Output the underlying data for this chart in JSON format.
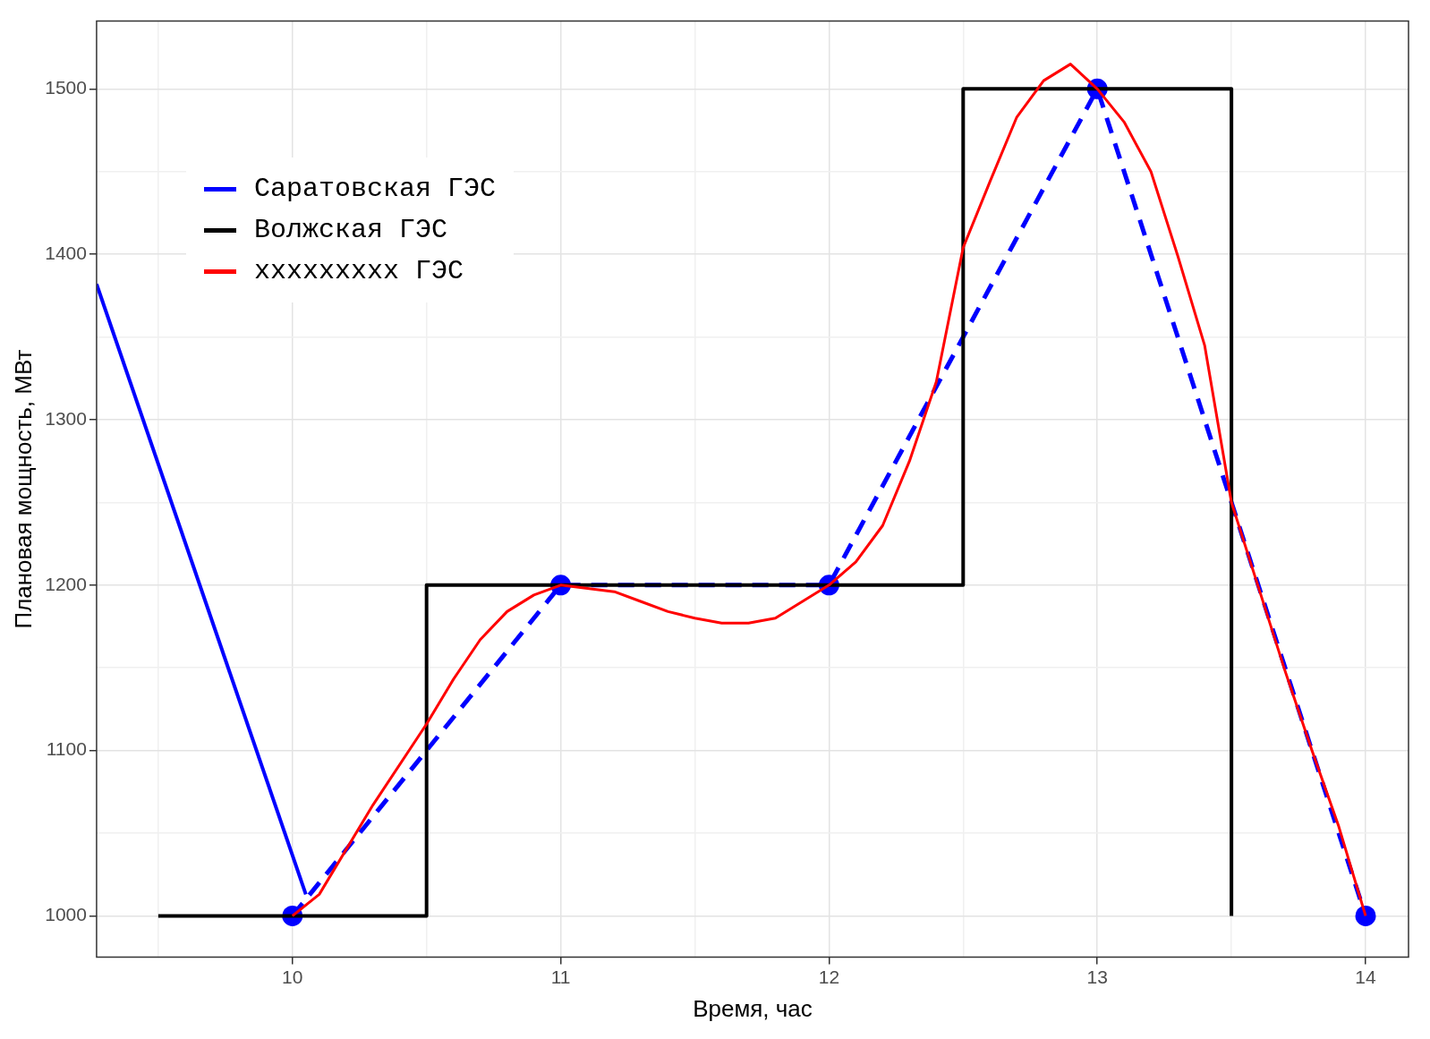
{
  "chart_data": {
    "type": "line",
    "xlabel": "Время, час",
    "ylabel": "Плановая мощность, МВт",
    "xlim": [
      9.27,
      14.16
    ],
    "ylim": [
      975,
      1541
    ],
    "xticks": [
      {
        "value": 9.5,
        "label": null
      },
      10,
      {
        "value": 10.5,
        "label": null
      },
      11,
      {
        "value": 11.5,
        "label": null
      },
      12,
      {
        "value": 12.5,
        "label": null
      },
      13,
      {
        "value": 13.5,
        "label": null
      },
      14
    ],
    "yticks": [
      1000,
      {
        "value": 1050,
        "label": null
      },
      1100,
      {
        "value": 1150,
        "label": null
      },
      1200,
      {
        "value": 1250,
        "label": null
      },
      1300,
      {
        "value": 1350,
        "label": null
      },
      1400,
      {
        "value": 1450,
        "label": null
      },
      1500
    ],
    "grid": true,
    "legend": "top left",
    "series": [
      {
        "name": "Саратовская ГЭС",
        "color": "#0000ff",
        "x": [
          10,
          11,
          12,
          13,
          14
        ],
        "values": [
          1000,
          1200,
          1200,
          1500,
          1000
        ],
        "line_style": "dashed",
        "marker": "circle"
      },
      {
        "name": "Волжская ГЭС",
        "type": "step",
        "color": "#000000",
        "x": [
          9.5,
          10.5,
          12.5,
          13.5
        ],
        "values": [
          1000,
          1200,
          1500,
          1000
        ],
        "line_style": "solid",
        "marker": "none"
      },
      {
        "name": "xxxxxxxxx ГЭС",
        "color": "#ff0000",
        "x": [
          10,
          10.1,
          10.3,
          10.5,
          10.6,
          10.7,
          10.8,
          10.9,
          11,
          11.1,
          11.2,
          11.3,
          11.4,
          11.5,
          11.6,
          11.7,
          11.8,
          11.9,
          12,
          12.1,
          12.2,
          12.3,
          12.4,
          12.5,
          12.6,
          12.7,
          12.8,
          12.9,
          13,
          13.1,
          13.2,
          13.3,
          13.4,
          13.5,
          13.6,
          13.7,
          13.8,
          13.9,
          14
        ],
        "values": [
          1000,
          1013,
          1067,
          1116,
          1143,
          1167,
          1184,
          1194,
          1200,
          1198,
          1196,
          1190,
          1184,
          1180,
          1177,
          1177,
          1180,
          1190,
          1200,
          1214,
          1236,
          1275,
          1323,
          1404,
          1444,
          1483,
          1505,
          1515,
          1500,
          1480,
          1450,
          1399,
          1345,
          1250,
          1199,
          1148,
          1100,
          1054,
          1000
        ],
        "line_style": "solid",
        "marker": "none"
      },
      {
        "color": "#0000ff",
        "x": [
          9.27,
          10.05
        ],
        "values": [
          1382,
          1013
        ],
        "line_style": "solid",
        "marker": "none"
      }
    ]
  }
}
